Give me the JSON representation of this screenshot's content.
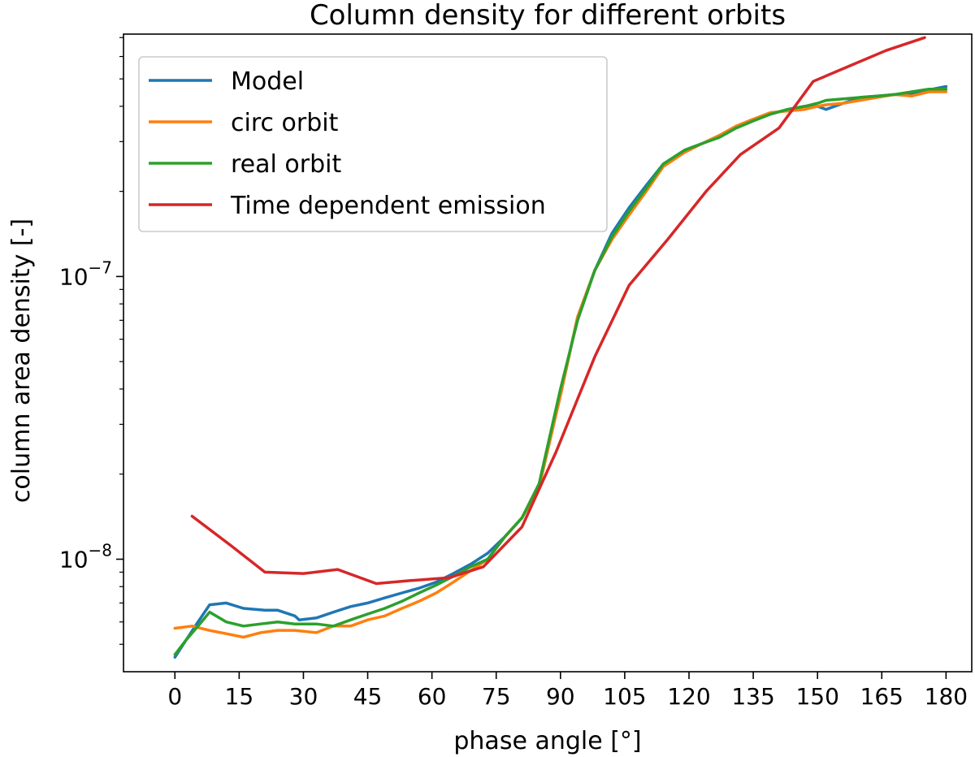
{
  "chart_data": {
    "type": "line",
    "title": "Column density for different orbits",
    "xlabel": "phase angle [°]",
    "ylabel": "column area density [-]",
    "xlim": [
      -12,
      186
    ],
    "ylim": [
      4e-09,
      7.2e-07
    ],
    "yscale": "log",
    "xticks": [
      0,
      15,
      30,
      45,
      60,
      75,
      90,
      105,
      120,
      135,
      150,
      165,
      180
    ],
    "xtick_labels": [
      "0",
      "15",
      "30",
      "45",
      "60",
      "75",
      "90",
      "105",
      "120",
      "135",
      "150",
      "165",
      "180"
    ],
    "yticks_major": [
      1e-08,
      1e-07
    ],
    "ytick_labels": [
      {
        "base": "10",
        "exp": "−8"
      },
      {
        "base": "10",
        "exp": "−7"
      }
    ],
    "yticks_minor": [
      5e-09,
      6e-09,
      7e-09,
      8e-09,
      9e-09,
      2e-08,
      3e-08,
      4e-08,
      5e-08,
      6e-08,
      7e-08,
      8e-08,
      9e-08,
      2e-07,
      3e-07,
      4e-07,
      5e-07,
      6e-07,
      7e-07
    ],
    "grid": false,
    "legend_position": "upper-left",
    "series": [
      {
        "name": "Model",
        "color": "#1f77b4",
        "x": [
          0,
          2.7,
          5.4,
          8.1,
          12,
          16,
          21,
          24,
          28,
          29,
          33,
          37,
          41,
          45,
          49,
          53,
          57,
          61,
          65,
          69,
          73,
          77,
          81,
          85,
          90,
          94,
          98,
          102,
          106,
          110,
          114,
          119,
          123,
          127,
          131,
          135,
          139,
          143,
          147,
          150,
          152,
          156,
          160,
          164,
          168,
          172,
          180
        ],
        "y": [
          4.5e-09,
          5.2e-09,
          6e-09,
          6.9e-09,
          7e-09,
          6.7e-09,
          6.6e-09,
          6.6e-09,
          6.3e-09,
          6.1e-09,
          6.2e-09,
          6.5e-09,
          6.8e-09,
          7e-09,
          7.3e-09,
          7.6e-09,
          7.9e-09,
          8.3e-09,
          8.9e-09,
          9.6e-09,
          1.05e-08,
          1.2e-08,
          1.4e-08,
          1.8e-08,
          3.8e-08,
          7.2e-08,
          1.05e-07,
          1.42e-07,
          1.75e-07,
          2.1e-07,
          2.5e-07,
          2.8e-07,
          2.95e-07,
          3.15e-07,
          3.4e-07,
          3.6e-07,
          3.75e-07,
          3.9e-07,
          4e-07,
          4e-07,
          3.9e-07,
          4.1e-07,
          4.3e-07,
          4.35e-07,
          4.4e-07,
          4.45e-07,
          4.7e-07
        ]
      },
      {
        "name": "circ orbit",
        "color": "#ff7f0e",
        "x": [
          0,
          4,
          8,
          12,
          16,
          20,
          24,
          28,
          33,
          37,
          41,
          45,
          49,
          53,
          57,
          61,
          65,
          69,
          73,
          77,
          81,
          85,
          90,
          94,
          98,
          102,
          106,
          110,
          114,
          119,
          123,
          127,
          131,
          135,
          139,
          143,
          147,
          150,
          152,
          156,
          160,
          164,
          168,
          172,
          176,
          180
        ],
        "y": [
          5.7e-09,
          5.8e-09,
          5.6e-09,
          5.45e-09,
          5.3e-09,
          5.5e-09,
          5.6e-09,
          5.6e-09,
          5.5e-09,
          5.8e-09,
          5.8e-09,
          6.1e-09,
          6.3e-09,
          6.7e-09,
          7.1e-09,
          7.6e-09,
          8.3e-09,
          9.1e-09,
          1e-08,
          1.2e-08,
          1.4e-08,
          1.8e-08,
          3.8e-08,
          7.2e-08,
          1.05e-07,
          1.35e-07,
          1.65e-07,
          2e-07,
          2.45e-07,
          2.75e-07,
          2.95e-07,
          3.15e-07,
          3.4e-07,
          3.6e-07,
          3.8e-07,
          3.85e-07,
          3.9e-07,
          4e-07,
          4.05e-07,
          4.1e-07,
          4.2e-07,
          4.3e-07,
          4.4e-07,
          4.35e-07,
          4.5e-07,
          4.5e-07
        ]
      },
      {
        "name": "real orbit",
        "color": "#2ca02c",
        "x": [
          0,
          2.7,
          5.4,
          8.1,
          12,
          16,
          20,
          24,
          28,
          33,
          37,
          41,
          45,
          49,
          53,
          57,
          61,
          65,
          69,
          73,
          77,
          81,
          85,
          90,
          94,
          98,
          102,
          106,
          110,
          114,
          119,
          123,
          127,
          131,
          135,
          139,
          143,
          147,
          150,
          152,
          156,
          160,
          164,
          168,
          172,
          176,
          180
        ],
        "y": [
          4.6e-09,
          5.2e-09,
          5.8e-09,
          6.5e-09,
          6e-09,
          5.8e-09,
          5.9e-09,
          6e-09,
          5.9e-09,
          5.9e-09,
          5.8e-09,
          6.1e-09,
          6.4e-09,
          6.7e-09,
          7.1e-09,
          7.6e-09,
          8.1e-09,
          8.7e-09,
          9.4e-09,
          1e-08,
          1.2e-08,
          1.4e-08,
          1.85e-08,
          4e-08,
          7e-08,
          1.05e-07,
          1.38e-07,
          1.7e-07,
          2.05e-07,
          2.5e-07,
          2.8e-07,
          2.95e-07,
          3.1e-07,
          3.35e-07,
          3.55e-07,
          3.75e-07,
          3.9e-07,
          4e-07,
          4.1e-07,
          4.2e-07,
          4.25e-07,
          4.3e-07,
          4.35e-07,
          4.4e-07,
          4.5e-07,
          4.6e-07,
          4.6e-07
        ]
      },
      {
        "name": "Time dependent emission",
        "color": "#d62728",
        "x": [
          4,
          13,
          21,
          30,
          38,
          47,
          55,
          64,
          72,
          81,
          89,
          98,
          106,
          115,
          124,
          132,
          141,
          149,
          158,
          166,
          175
        ],
        "y": [
          1.42e-08,
          1.12e-08,
          9e-09,
          8.9e-09,
          9.2e-09,
          8.2e-09,
          8.4e-09,
          8.6e-09,
          9.4e-09,
          1.3e-08,
          2.4e-08,
          5.2e-08,
          9.3e-08,
          1.35e-07,
          2e-07,
          2.7e-07,
          3.35e-07,
          4.9e-07,
          5.6e-07,
          6.3e-07,
          7e-07
        ]
      }
    ]
  }
}
